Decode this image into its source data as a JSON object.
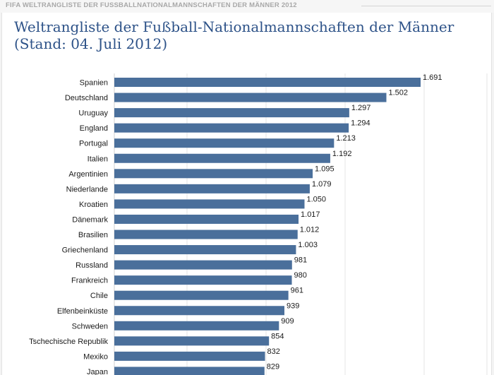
{
  "header": {
    "section_label": "FIFA WELTRANGLISTE DER FUSSBALLNATIONALMANNSCHAFTEN DER MÄNNER 2012"
  },
  "chart_data": {
    "type": "bar",
    "orientation": "horizontal",
    "title": "Weltrangliste der Fußball-Nationalmannschaften der Männer",
    "subtitle": "(Stand: 04. Juli 2012)",
    "categories": [
      "Spanien",
      "Deutschland",
      "Uruguay",
      "England",
      "Portugal",
      "Italien",
      "Argentinien",
      "Niederlande",
      "Kroatien",
      "Dänemark",
      "Brasilien",
      "Griechenland",
      "Russland",
      "Frankreich",
      "Chile",
      "Elfenbeinküste",
      "Schweden",
      "Tschechische Republik",
      "Mexiko",
      "Japan"
    ],
    "values": [
      1691,
      1502,
      1297,
      1294,
      1213,
      1192,
      1095,
      1079,
      1050,
      1017,
      1012,
      1003,
      981,
      980,
      961,
      939,
      909,
      854,
      832,
      829
    ],
    "value_labels": [
      "1.691",
      "1.502",
      "1.297",
      "1.294",
      "1.213",
      "1.192",
      "1.095",
      "1.079",
      "1.050",
      "1.017",
      "1.012",
      "1.003",
      "981",
      "980",
      "961",
      "939",
      "909",
      "854",
      "832",
      "829"
    ],
    "xlim": [
      0,
      1691
    ],
    "xlabel": "",
    "ylabel": "",
    "grid": true,
    "legend": "none",
    "bar_color": "#4a6f9b",
    "title_color": "#2d5288"
  }
}
